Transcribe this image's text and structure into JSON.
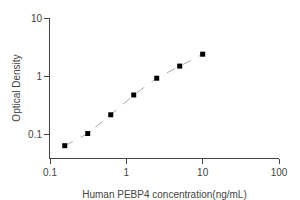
{
  "chart_data": {
    "type": "line",
    "xlabel": "Human PEBP4 concentration(ng/mL)",
    "ylabel": "Optical Density",
    "x": [
      0.156,
      0.312,
      0.625,
      1.25,
      2.5,
      5.0,
      10.0
    ],
    "series": [
      {
        "type": "line",
        "color": "#aaaaaa",
        "line_style": "dashed",
        "values": [
          0.065,
          0.105,
          0.22,
          0.48,
          0.93,
          1.5,
          2.4
        ]
      },
      {
        "type": "scatter",
        "color": "black",
        "marker": "square",
        "values": [
          0.065,
          0.105,
          0.22,
          0.48,
          0.93,
          1.5,
          2.4
        ]
      }
    ],
    "log": true,
    "xlim": [
      0.1,
      100
    ],
    "ylim": [
      0.04,
      10
    ],
    "xticks": [
      0.1,
      1,
      10,
      100
    ],
    "yticks": [
      0.1,
      1,
      10
    ],
    "grid": false
  }
}
